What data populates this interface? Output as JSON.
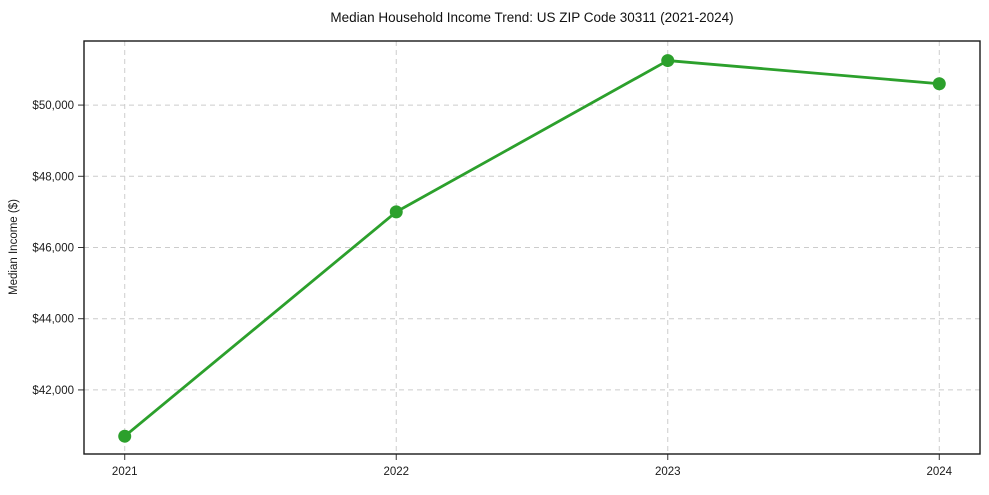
{
  "chart_data": {
    "type": "line",
    "title": "Median Household Income Trend: US ZIP Code 30311 (2021-2024)",
    "xlabel": "",
    "ylabel": "Median Income ($)",
    "x": [
      2021,
      2022,
      2023,
      2024
    ],
    "x_tick_labels": [
      "2021",
      "2022",
      "2023",
      "2024"
    ],
    "series": [
      {
        "name": "Median Household Income",
        "values": [
          40700,
          47000,
          51250,
          50600
        ]
      }
    ],
    "y_ticks": [
      42000,
      44000,
      46000,
      48000,
      50000
    ],
    "y_tick_labels": [
      "$42,000",
      "$44,000",
      "$46,000",
      "$48,000",
      "$50,000"
    ],
    "ylim": [
      40200,
      51800
    ],
    "xlim": [
      2020.85,
      2024.15
    ],
    "grid": true,
    "legend": false,
    "line_color": "#2ca02c",
    "marker": "circle",
    "background_color": "#ffffff"
  }
}
